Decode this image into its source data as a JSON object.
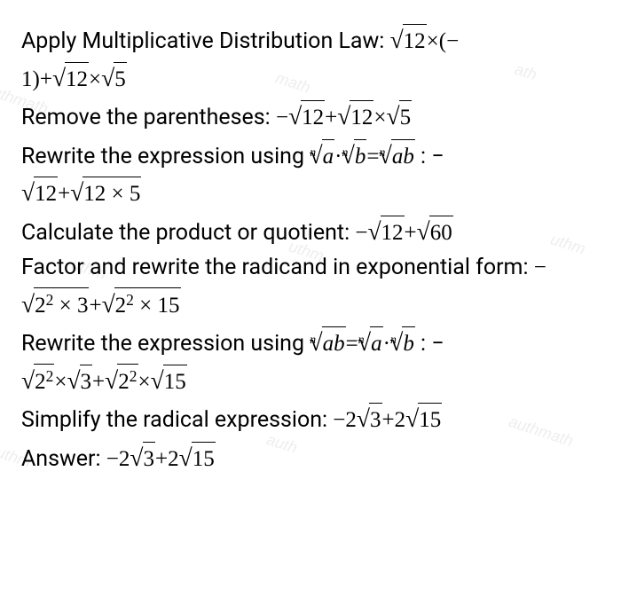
{
  "watermarks": [
    "uthmath",
    "math",
    "ath",
    "uthm",
    "uthm",
    "uthm",
    "uthm",
    "auth",
    "authmath"
  ],
  "steps": {
    "s1_text": "Apply Multiplicative Distribution Law:  ",
    "s1_math": "√12 × (− 1) + √12 × √5",
    "s2_text": "Remove the parentheses:  ",
    "s2_math": "− √12 + √12 × √5",
    "s3_text": "Rewrite the expression using  ",
    "s3_rule": "ⁿ√a · ⁿ√b = ⁿ√(ab)",
    "s3_math": ":  − √12 + √(12 × 5)",
    "s4_text": "Calculate the product or quotient:  ",
    "s4_math": "− √12 + √60",
    "s5_text": "Factor and rewrite the radicand in exponential form:  ",
    "s5_math": "− √(2² × 3) + √(2² × 15)",
    "s6_text": "Rewrite the expression using  ",
    "s6_rule": "ⁿ√(ab) = ⁿ√a · ⁿ√b",
    "s6_math": ":  − √(2²) × √3 + √(2²) × √15",
    "s7_text": "Simplify the radical expression:  ",
    "s7_math": "−2√3 + 2√15",
    "s8_text": "Answer:  ",
    "s8_math": "−2√3 + 2√15"
  }
}
